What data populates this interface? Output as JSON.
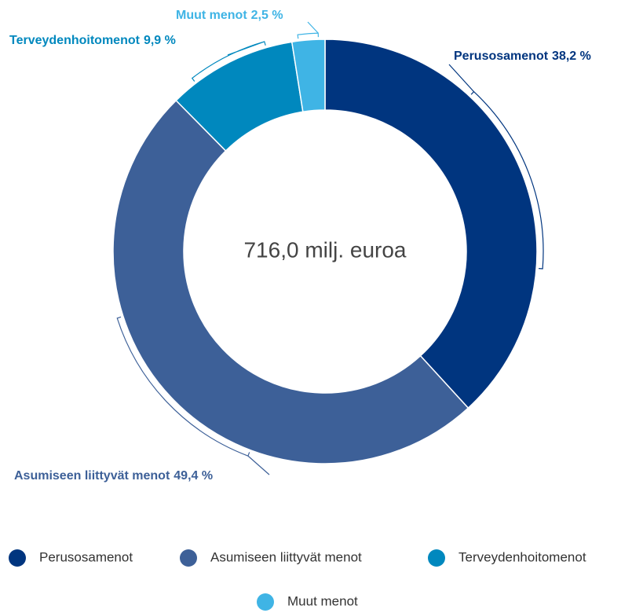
{
  "chart_data": {
    "type": "pie",
    "donut": true,
    "center_label": "716,0 milj. euroa",
    "categories": [
      "Perusosamenot",
      "Asumiseen liittyvät menot",
      "Terveydenhoitomenot",
      "Muut menot"
    ],
    "values": [
      38.2,
      49.4,
      9.9,
      2.5
    ],
    "value_labels": [
      "38,2 %",
      "49,4 %",
      "9,9 %",
      "2,5 %"
    ],
    "colors": [
      "#00357f",
      "#3d6098",
      "#0088be",
      "#3fb4e5"
    ],
    "legend": "bottom"
  }
}
